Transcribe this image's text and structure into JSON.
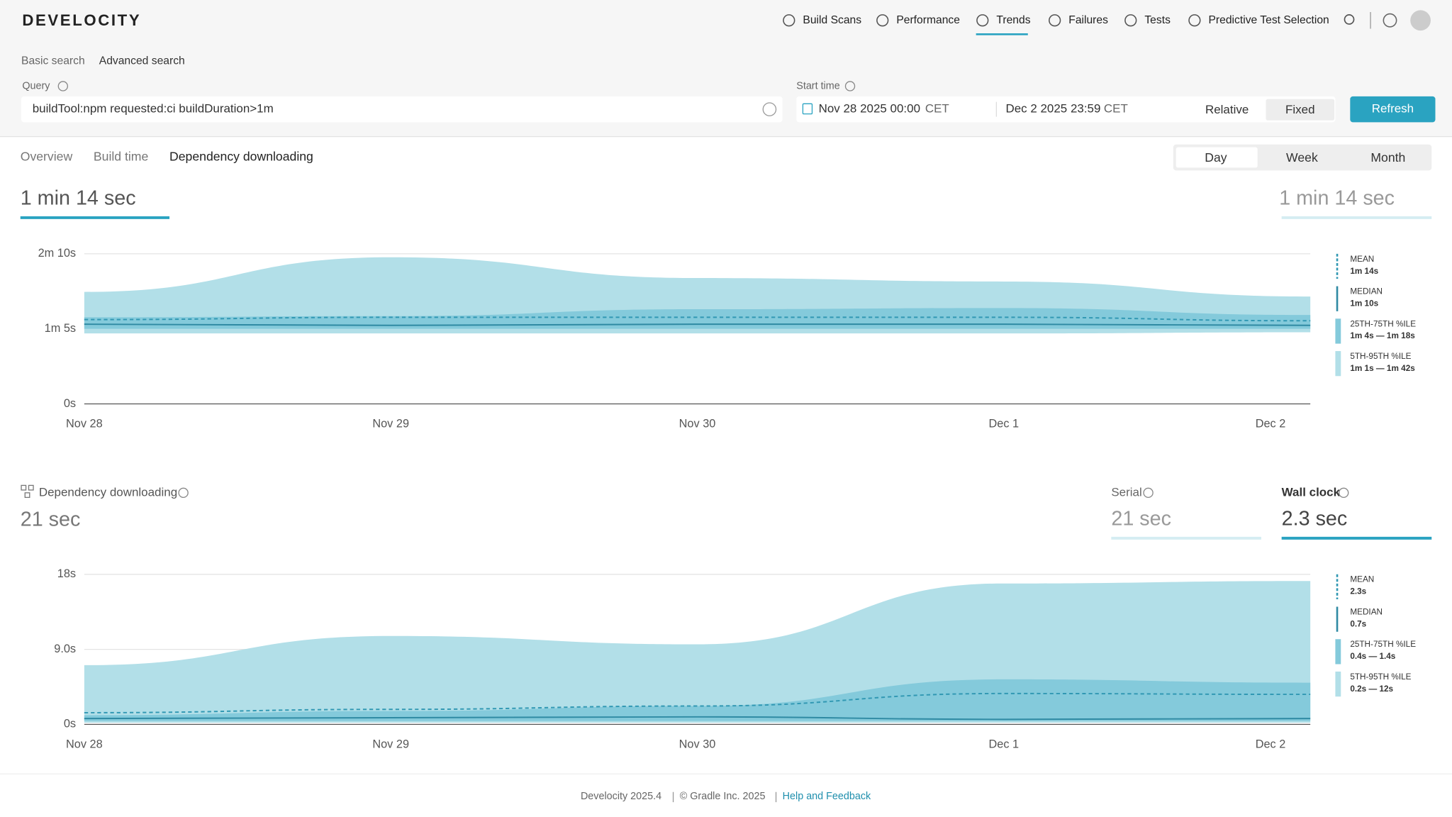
{
  "header": {
    "logo": "DEVELOCITY",
    "nav": [
      "Build Scans",
      "Performance",
      "Trends",
      "Failures",
      "Tests",
      "Predictive Test Selection"
    ]
  },
  "search": {
    "basic": "Basic search",
    "advanced": "Advanced search",
    "query_label": "Query",
    "query": "buildTool:npm requested:ci buildDuration>1m",
    "start_label": "Start time",
    "start": "Nov 28 2025 00:00",
    "start_tz": "CET",
    "end": "Dec 2 2025 23:59",
    "end_tz": "CET",
    "relative": "Relative",
    "fixed": "Fixed",
    "refresh": "Refresh"
  },
  "tabs": [
    "Overview",
    "Build time",
    "Dependency downloading"
  ],
  "periods": [
    "Day",
    "Week",
    "Month"
  ],
  "build_time": {
    "value": "1 min 14 sec",
    "compare": "1 min 14 sec"
  },
  "dependency": {
    "title": "Dependency downloading",
    "value": "21 sec",
    "serial_label": "Serial",
    "serial_value": "21 sec",
    "wall_label": "Wall clock",
    "wall_value": "2.3 sec"
  },
  "chart_data": [
    {
      "type": "area",
      "categories": [
        "Nov 28",
        "Nov 29",
        "Nov 30",
        "Dec 1",
        "Dec 2"
      ],
      "ylim": [
        0,
        130
      ],
      "yticks": [
        {
          "value": 0,
          "label": "0s"
        },
        {
          "value": 65,
          "label": "1m 5s"
        },
        {
          "value": 130,
          "label": "2m 10s"
        }
      ],
      "grid": true,
      "series": [
        {
          "name": "MEAN",
          "legend_value": "1m 14s",
          "color": "#3198b3",
          "dashed": true,
          "values": [
            73,
            75,
            75,
            75,
            72
          ]
        },
        {
          "name": "MEDIAN",
          "legend_value": "1m 10s",
          "color": "#2f8aa3",
          "dashed": false,
          "values": [
            69,
            68,
            69,
            69,
            68
          ]
        },
        {
          "name": "25TH-75TH %ILE",
          "legend_value": "1m 4s — 1m 18s",
          "color": "#84cadb",
          "low": [
            65,
            65,
            65,
            65,
            65
          ],
          "high": [
            75,
            76,
            82,
            83,
            77
          ]
        },
        {
          "name": "5TH-95TH %ILE",
          "legend_value": "1m 1s — 1m 42s",
          "color": "#b2dfe8",
          "low": [
            61,
            61,
            61,
            61,
            62
          ],
          "high": [
            97,
            127,
            109,
            106,
            93
          ]
        }
      ]
    },
    {
      "type": "area",
      "categories": [
        "Nov 28",
        "Nov 29",
        "Nov 30",
        "Dec 1",
        "Dec 2"
      ],
      "ylim": [
        0,
        18
      ],
      "yticks": [
        {
          "value": 0,
          "label": "0s"
        },
        {
          "value": 9,
          "label": "9.0s"
        },
        {
          "value": 18,
          "label": "18s"
        }
      ],
      "grid": true,
      "series": [
        {
          "name": "MEAN",
          "legend_value": "2.3s",
          "color": "#3198b3",
          "dashed": true,
          "values": [
            1.4,
            1.8,
            2.2,
            3.7,
            3.6
          ]
        },
        {
          "name": "MEDIAN",
          "legend_value": "0.7s",
          "color": "#2f8aa3",
          "dashed": false,
          "values": [
            0.7,
            0.8,
            0.9,
            0.6,
            0.7
          ]
        },
        {
          "name": "25TH-75TH %ILE",
          "legend_value": "0.4s — 1.4s",
          "color": "#84cadb",
          "low": [
            0.4,
            0.4,
            0.4,
            0.4,
            0.4
          ],
          "high": [
            1.1,
            1.6,
            2.2,
            5.4,
            5
          ]
        },
        {
          "name": "5TH-95TH %ILE",
          "legend_value": "0.2s — 12s",
          "color": "#b2dfe8",
          "low": [
            0.2,
            0.2,
            0.2,
            0.2,
            0.2
          ],
          "high": [
            7.1,
            10.6,
            9.6,
            16.9,
            17.2
          ]
        }
      ]
    }
  ],
  "footer": {
    "version": "Develocity 2025.4",
    "copyright": "© Gradle Inc. 2025",
    "help": "Help and Feedback"
  }
}
